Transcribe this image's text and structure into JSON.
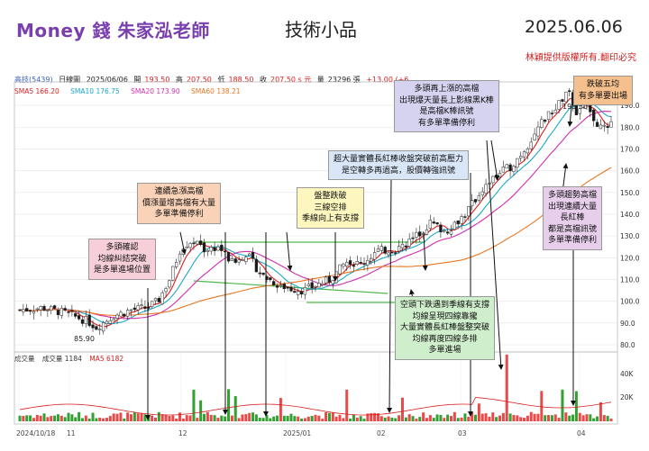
{
  "header": {
    "brand": "Money 錢  朱家泓老師",
    "title": "技術小品",
    "date": "2025.06.06",
    "copyright": "林穎提供版權所有.翻印必究"
  },
  "info_bar": {
    "stock": "高技(5439)",
    "period": "日線圖",
    "date": "2025/06/06",
    "open_label": "開",
    "open": "193.50",
    "high_label": "高",
    "high": "207.50",
    "low_label": "低",
    "low": "188.50",
    "close_label": "收",
    "close": "207.50 s 元",
    "vol_label": "量",
    "volume": "23296 張",
    "change": "+13.00 (+6.",
    "up_color": "#d81e1e"
  },
  "ma_legend": [
    {
      "label": "SMA5 166.20",
      "color": "#d81e1e"
    },
    {
      "label": "SMA10 176.75",
      "color": "#1aa8c8"
    },
    {
      "label": "SMA20 173.90",
      "color": "#d02fb0"
    },
    {
      "label": "SMA60 138.21",
      "color": "#e87722"
    }
  ],
  "volume_legend": {
    "name": "成交量",
    "value_label": "成交量 1184",
    "ma_label": "MA5 6182"
  },
  "annotations": {
    "a1": [
      "多頭確認",
      "均線糾結突破",
      "是多單進場位置"
    ],
    "a2": [
      "連續急漲高檔",
      "價漲量增高檔有大量",
      "多單準備停利"
    ],
    "a3": [
      "盤整跌破",
      "三線空排",
      "季線向上有支撐"
    ],
    "a4": [
      "超大量實體長紅棒收盤突破前高壓力",
      "是空轉多再過高，股價轉強訊號"
    ],
    "a5": [
      "多頭再上漲的高檔",
      "出現爆天量長上影線黑K棒",
      "是高檔K棒訊號",
      "有多單準備停利"
    ],
    "a6": [
      "跌破五均",
      "有多單要出場"
    ],
    "a7": [
      "多頭趨勢高檔",
      "出現連續大量",
      "長紅棒",
      "都是高檔訊號",
      "多單準備停利"
    ],
    "a8": [
      "空頭下跌遇到季線有支撐",
      "均線呈現四線靠攏",
      "大量實體長紅棒盤整突破",
      "均線再度四線多排",
      "多單進場"
    ]
  },
  "annotation_colors": {
    "pink": "#f7cfd8",
    "peach": "#f9d2b8",
    "yellow": "#fdf7bf",
    "blue": "#d8e6f8",
    "lavender": "#d6d3f0",
    "orange": "#f6c08e",
    "purple": "#e7cfec",
    "green": "#cfeecb"
  },
  "chart_data": {
    "type": "candlestick",
    "x_tick_labels": [
      "2024/10/18",
      "11",
      "12",
      "2025/01",
      "02",
      "03",
      "04"
    ],
    "y_axis": {
      "min": 80,
      "max": 200,
      "ticks": [
        80.0,
        90.0,
        100.0,
        110.0,
        120.0,
        130.0,
        140.0,
        150.0,
        160.0,
        170.0,
        180.0,
        190.0
      ]
    },
    "price_labels": {
      "low_marker": "85.90",
      "high_marker": "195.50"
    },
    "volume_axis": {
      "ticks": [
        "40K",
        "20K"
      ]
    },
    "support_lines": [
      "upper-consolidation",
      "lower-consolidation"
    ]
  }
}
